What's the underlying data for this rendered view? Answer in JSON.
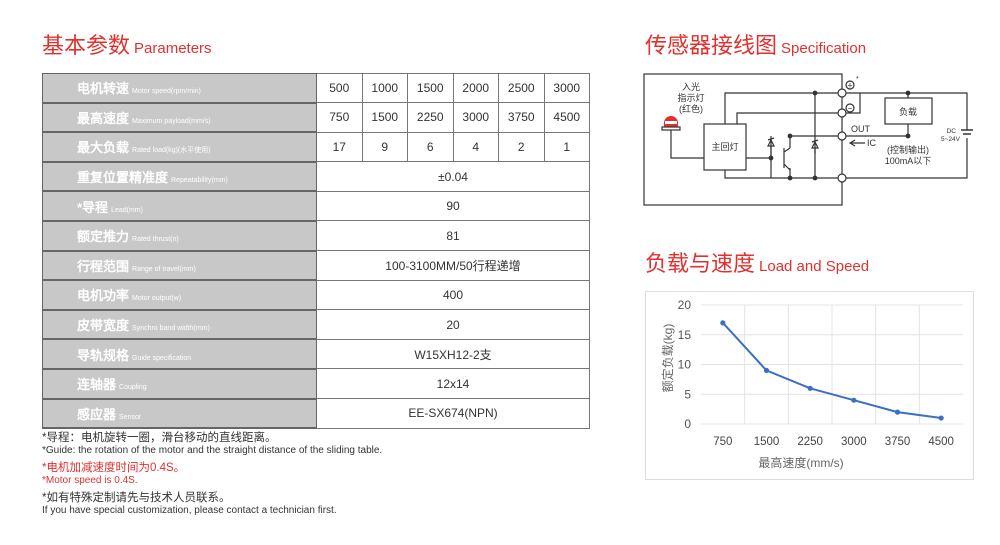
{
  "params": {
    "title_cn": "基本参数",
    "title_en": "Parameters",
    "rows": [
      {
        "cn": "电机转速",
        "en": "Motor speed(rpm/min)",
        "values": [
          "500",
          "1000",
          "1500",
          "2000",
          "2500",
          "3000"
        ]
      },
      {
        "cn": "最高速度",
        "en": "Maximum payload(mm/s)",
        "values": [
          "750",
          "1500",
          "2250",
          "3000",
          "3750",
          "4500"
        ]
      },
      {
        "cn": "最大负载",
        "en": "Rated load(kg)(水平使用)",
        "values": [
          "17",
          "9",
          "6",
          "4",
          "2",
          "1"
        ]
      },
      {
        "cn": "重复位置精准度",
        "en": "Repeatability(mm)",
        "value": "±0.04"
      },
      {
        "cn": "*导程",
        "en": "Lead(mm)",
        "value": "90"
      },
      {
        "cn": "额定推力",
        "en": "Rated thrust(n)",
        "value": "81"
      },
      {
        "cn": "行程范围",
        "en": "Range of travel(mm)",
        "value": "100-3100MM/50行程递增"
      },
      {
        "cn": "电机功率",
        "en": "Motor output(w)",
        "value": "400"
      },
      {
        "cn": "皮带宽度",
        "en": "Synchro band width(mm)",
        "value": "20"
      },
      {
        "cn": "导轨规格",
        "en": "Guide specification",
        "value": "W15XH12-2支"
      },
      {
        "cn": "连轴器",
        "en": "Coupling",
        "value": "12x14"
      },
      {
        "cn": "感应器",
        "en": "Sensor",
        "value": "EE-SX674(NPN)"
      }
    ]
  },
  "notes": {
    "n1_cn": "*导程：电机旋转一圈，滑台移动的直线距离。",
    "n1_en": "*Guide: the rotation of the motor and the straight distance of the sliding table.",
    "n2_cn": "*电机加减速度时间为0.4S。",
    "n2_en": "*Motor speed is 0.4S.",
    "n3_cn": "*如有特殊定制请先与技术人员联系。",
    "n3_en": "If you have special customization, please contact a technician first."
  },
  "wiring": {
    "title_cn": "传感器接线图",
    "title_en": "Specification",
    "lamp_label": [
      "入光",
      "指示灯",
      "(红色)"
    ],
    "main_circuit": "主回灯",
    "load": "负载",
    "out": "OUT",
    "ic": "IC",
    "control": "(控制输出)",
    "current": "100mA以下",
    "dc": "DC",
    "voltage": "5~24V",
    "plus": "+",
    "minus": "−",
    "asterisk": "*",
    "accent": "#e0312f"
  },
  "load_speed": {
    "title_cn": "负载与速度",
    "title_en": "Load and Speed"
  },
  "chart_data": {
    "type": "line",
    "categories": [
      "750",
      "1500",
      "2250",
      "3000",
      "3750",
      "4500"
    ],
    "values": [
      17,
      9,
      6,
      4,
      2,
      1
    ],
    "xlabel": "最高速度(mm/s)",
    "ylabel": "额定负载(kg)",
    "ylim": [
      0,
      20
    ],
    "yticks": [
      "0",
      "5",
      "10",
      "15",
      "20"
    ],
    "grid": true,
    "color": "#3a6fc4"
  }
}
